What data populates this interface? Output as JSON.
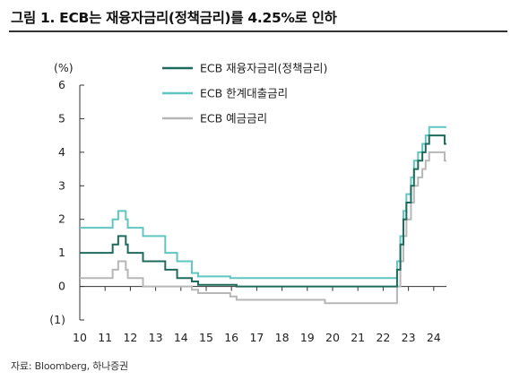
{
  "title": "그림 1. ECB는 재융자금리(정책금리)를 4.25%로 인하",
  "source": "자료: Bloomberg, 하나증권",
  "chart_data": {
    "type": "line",
    "ylabel": "(%)",
    "xlim": [
      10,
      24.8
    ],
    "ylim": [
      -1,
      6
    ],
    "y_ticks": [
      {
        "value": 6,
        "label": "6"
      },
      {
        "value": 5,
        "label": "5"
      },
      {
        "value": 4,
        "label": "4"
      },
      {
        "value": 3,
        "label": "3"
      },
      {
        "value": 2,
        "label": "2"
      },
      {
        "value": 1,
        "label": "1"
      },
      {
        "value": 0,
        "label": "0"
      },
      {
        "value": -1,
        "label": "(1)"
      }
    ],
    "x_ticks": [
      {
        "value": 10,
        "label": "10"
      },
      {
        "value": 11,
        "label": "11"
      },
      {
        "value": 12,
        "label": "12"
      },
      {
        "value": 13,
        "label": "13"
      },
      {
        "value": 14,
        "label": "14"
      },
      {
        "value": 15,
        "label": "15"
      },
      {
        "value": 16,
        "label": "16"
      },
      {
        "value": 17,
        "label": "17"
      },
      {
        "value": 18,
        "label": "18"
      },
      {
        "value": 19,
        "label": "19"
      },
      {
        "value": 20,
        "label": "20"
      },
      {
        "value": 21,
        "label": "21"
      },
      {
        "value": 22,
        "label": "22"
      },
      {
        "value": 23,
        "label": "23"
      },
      {
        "value": 24,
        "label": "24"
      }
    ],
    "grid": false,
    "legend_position": "top-center",
    "series": [
      {
        "name": "ECB 재융자금리(정책금리)",
        "color": "#1e6b5c",
        "points": [
          [
            10,
            1.0
          ],
          [
            11.3,
            1.0
          ],
          [
            11.3,
            1.25
          ],
          [
            11.52,
            1.25
          ],
          [
            11.52,
            1.5
          ],
          [
            11.82,
            1.5
          ],
          [
            11.82,
            1.25
          ],
          [
            11.9,
            1.25
          ],
          [
            11.9,
            1.0
          ],
          [
            12.5,
            1.0
          ],
          [
            12.5,
            0.75
          ],
          [
            13.38,
            0.75
          ],
          [
            13.38,
            0.5
          ],
          [
            13.85,
            0.5
          ],
          [
            13.85,
            0.25
          ],
          [
            14.43,
            0.25
          ],
          [
            14.43,
            0.15
          ],
          [
            14.68,
            0.15
          ],
          [
            14.68,
            0.05
          ],
          [
            16.2,
            0.05
          ],
          [
            16.2,
            0.0
          ],
          [
            22.55,
            0.0
          ],
          [
            22.55,
            0.5
          ],
          [
            22.68,
            0.5
          ],
          [
            22.68,
            1.25
          ],
          [
            22.8,
            1.25
          ],
          [
            22.8,
            2.0
          ],
          [
            22.92,
            2.0
          ],
          [
            22.92,
            2.5
          ],
          [
            23.1,
            2.5
          ],
          [
            23.1,
            3.0
          ],
          [
            23.22,
            3.0
          ],
          [
            23.22,
            3.5
          ],
          [
            23.38,
            3.5
          ],
          [
            23.38,
            3.75
          ],
          [
            23.55,
            3.75
          ],
          [
            23.55,
            4.0
          ],
          [
            23.68,
            4.0
          ],
          [
            23.68,
            4.25
          ],
          [
            23.82,
            4.25
          ],
          [
            23.82,
            4.5
          ],
          [
            24.43,
            4.5
          ],
          [
            24.43,
            4.25
          ],
          [
            24.5,
            4.25
          ]
        ]
      },
      {
        "name": "ECB 한계대출금리",
        "color": "#5fc6c0",
        "points": [
          [
            10,
            1.75
          ],
          [
            11.3,
            1.75
          ],
          [
            11.3,
            2.0
          ],
          [
            11.52,
            2.0
          ],
          [
            11.52,
            2.25
          ],
          [
            11.82,
            2.25
          ],
          [
            11.82,
            2.0
          ],
          [
            11.9,
            2.0
          ],
          [
            11.9,
            1.75
          ],
          [
            12.5,
            1.75
          ],
          [
            12.5,
            1.5
          ],
          [
            13.38,
            1.5
          ],
          [
            13.38,
            1.0
          ],
          [
            13.85,
            1.0
          ],
          [
            13.85,
            0.75
          ],
          [
            14.43,
            0.75
          ],
          [
            14.43,
            0.4
          ],
          [
            14.68,
            0.4
          ],
          [
            14.68,
            0.3
          ],
          [
            15.95,
            0.3
          ],
          [
            15.95,
            0.25
          ],
          [
            22.55,
            0.25
          ],
          [
            22.55,
            0.75
          ],
          [
            22.68,
            0.75
          ],
          [
            22.68,
            1.5
          ],
          [
            22.8,
            1.5
          ],
          [
            22.8,
            2.25
          ],
          [
            22.92,
            2.25
          ],
          [
            22.92,
            2.75
          ],
          [
            23.1,
            2.75
          ],
          [
            23.1,
            3.25
          ],
          [
            23.22,
            3.25
          ],
          [
            23.22,
            3.75
          ],
          [
            23.38,
            3.75
          ],
          [
            23.38,
            4.0
          ],
          [
            23.55,
            4.0
          ],
          [
            23.55,
            4.25
          ],
          [
            23.68,
            4.25
          ],
          [
            23.68,
            4.5
          ],
          [
            23.82,
            4.5
          ],
          [
            23.82,
            4.75
          ],
          [
            24.5,
            4.75
          ]
        ]
      },
      {
        "name": "ECB 예금금리",
        "color": "#b7b7b7",
        "points": [
          [
            10,
            0.25
          ],
          [
            11.3,
            0.25
          ],
          [
            11.3,
            0.5
          ],
          [
            11.52,
            0.5
          ],
          [
            11.52,
            0.75
          ],
          [
            11.82,
            0.75
          ],
          [
            11.82,
            0.5
          ],
          [
            11.9,
            0.5
          ],
          [
            11.9,
            0.25
          ],
          [
            12.5,
            0.25
          ],
          [
            12.5,
            0.0
          ],
          [
            14.43,
            0.0
          ],
          [
            14.43,
            -0.1
          ],
          [
            14.68,
            -0.1
          ],
          [
            14.68,
            -0.2
          ],
          [
            15.95,
            -0.2
          ],
          [
            15.95,
            -0.3
          ],
          [
            16.2,
            -0.3
          ],
          [
            16.2,
            -0.4
          ],
          [
            19.7,
            -0.4
          ],
          [
            19.7,
            -0.5
          ],
          [
            22.55,
            -0.5
          ],
          [
            22.55,
            0.0
          ],
          [
            22.68,
            0.0
          ],
          [
            22.68,
            0.75
          ],
          [
            22.8,
            0.75
          ],
          [
            22.8,
            1.5
          ],
          [
            22.92,
            1.5
          ],
          [
            22.92,
            2.0
          ],
          [
            23.1,
            2.0
          ],
          [
            23.1,
            2.5
          ],
          [
            23.22,
            2.5
          ],
          [
            23.22,
            3.0
          ],
          [
            23.38,
            3.0
          ],
          [
            23.38,
            3.25
          ],
          [
            23.55,
            3.25
          ],
          [
            23.55,
            3.5
          ],
          [
            23.68,
            3.5
          ],
          [
            23.68,
            3.75
          ],
          [
            23.82,
            3.75
          ],
          [
            23.82,
            4.0
          ],
          [
            24.43,
            4.0
          ],
          [
            24.43,
            3.75
          ],
          [
            24.5,
            3.75
          ]
        ]
      }
    ]
  }
}
